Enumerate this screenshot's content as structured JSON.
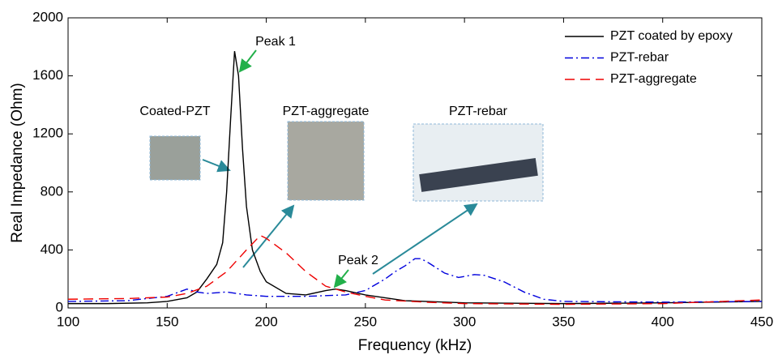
{
  "chart_data": {
    "type": "line",
    "xlabel": "Frequency (kHz)",
    "ylabel": "Real Impedance (Ohm)",
    "xlim": [
      100,
      450
    ],
    "xticks": [
      100,
      150,
      200,
      250,
      300,
      350,
      400,
      450
    ],
    "ylim": [
      0,
      2000
    ],
    "yticks": [
      0,
      400,
      800,
      1200,
      1600,
      2000
    ],
    "grid": false,
    "legend": "upper right",
    "annotations": [
      "Peak 1",
      "Peak 2",
      "Coated-PZT",
      "PZT-aggregate",
      "PZT-rebar"
    ],
    "series": [
      {
        "name": "PZT coated by epoxy",
        "color": "#000000",
        "dash": "solid",
        "x": [
          100,
          120,
          140,
          150,
          160,
          165,
          170,
          175,
          178,
          180,
          182,
          184,
          186,
          188,
          190,
          193,
          197,
          200,
          210,
          220,
          230,
          235,
          240,
          250,
          270,
          300,
          350,
          400,
          450
        ],
        "values": [
          30,
          30,
          35,
          45,
          70,
          110,
          200,
          300,
          450,
          800,
          1300,
          1770,
          1600,
          1100,
          700,
          400,
          250,
          180,
          100,
          90,
          120,
          130,
          120,
          90,
          50,
          35,
          30,
          35,
          45
        ]
      },
      {
        "name": "PZT-rebar",
        "color": "#0000dd",
        "dash": "dashdot",
        "x": [
          100,
          130,
          150,
          160,
          165,
          170,
          180,
          190,
          200,
          220,
          240,
          250,
          260,
          265,
          270,
          275,
          278,
          282,
          290,
          297,
          305,
          310,
          320,
          330,
          340,
          350,
          400,
          450
        ],
        "values": [
          45,
          50,
          80,
          130,
          110,
          100,
          110,
          90,
          80,
          80,
          90,
          120,
          200,
          250,
          290,
          340,
          340,
          310,
          240,
          210,
          230,
          225,
          180,
          110,
          60,
          45,
          40,
          45
        ]
      },
      {
        "name": "PZT-aggregate",
        "color": "#ee0000",
        "dash": "dash",
        "x": [
          100,
          130,
          150,
          160,
          170,
          180,
          190,
          197,
          200,
          210,
          220,
          230,
          240,
          250,
          260,
          280,
          300,
          350,
          400,
          450
        ],
        "values": [
          60,
          65,
          75,
          100,
          150,
          250,
          400,
          500,
          480,
          380,
          250,
          150,
          110,
          80,
          55,
          40,
          30,
          25,
          30,
          55
        ]
      }
    ]
  }
}
